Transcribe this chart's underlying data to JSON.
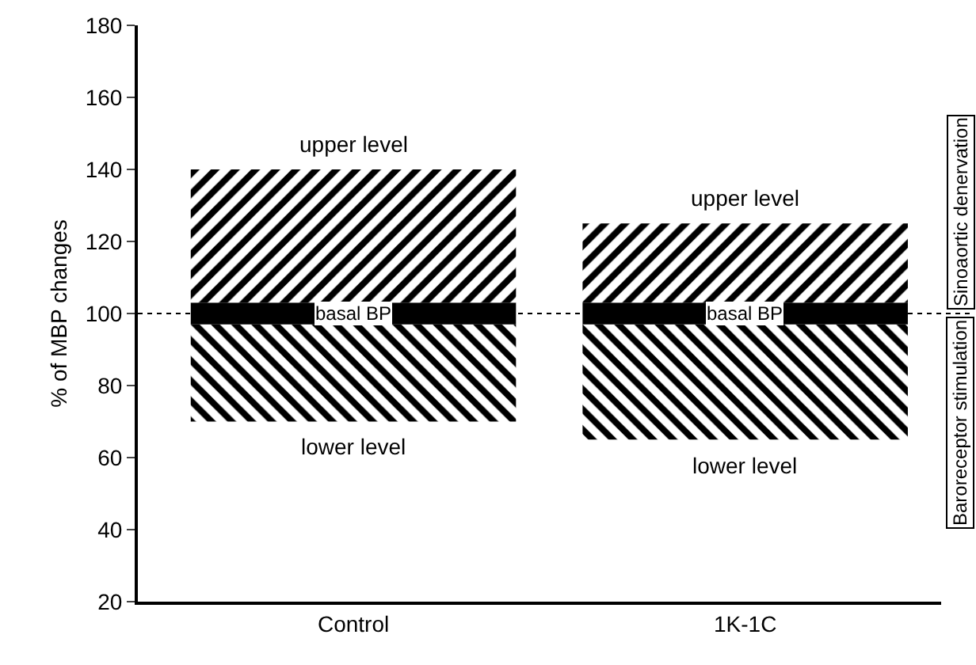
{
  "chart_data": {
    "type": "bar",
    "ylabel": "% of MBP changes",
    "categories": [
      "Control",
      "1K-1C"
    ],
    "series": [
      {
        "name": "lower level",
        "color": "#000000",
        "base": [
          70,
          65
        ],
        "values": [
          27,
          32
        ]
      },
      {
        "name": "basal BP",
        "color": "#000000",
        "base": [
          97,
          97
        ],
        "values": [
          6,
          6
        ]
      },
      {
        "name": "upper level",
        "color": "#000000",
        "base": [
          103,
          103
        ],
        "values": [
          37,
          22
        ]
      }
    ],
    "ylim": [
      20,
      180
    ],
    "yticks": [
      20,
      40,
      60,
      80,
      100,
      120,
      140,
      160,
      180
    ],
    "ref_lines": [
      {
        "axis": "y",
        "value": 100,
        "line_style": "dotted",
        "color": "#000000"
      }
    ],
    "annotations": [
      "Sinoaortic denervation",
      "Baroreceptor stimulation"
    ],
    "grid": false,
    "legend": false
  }
}
